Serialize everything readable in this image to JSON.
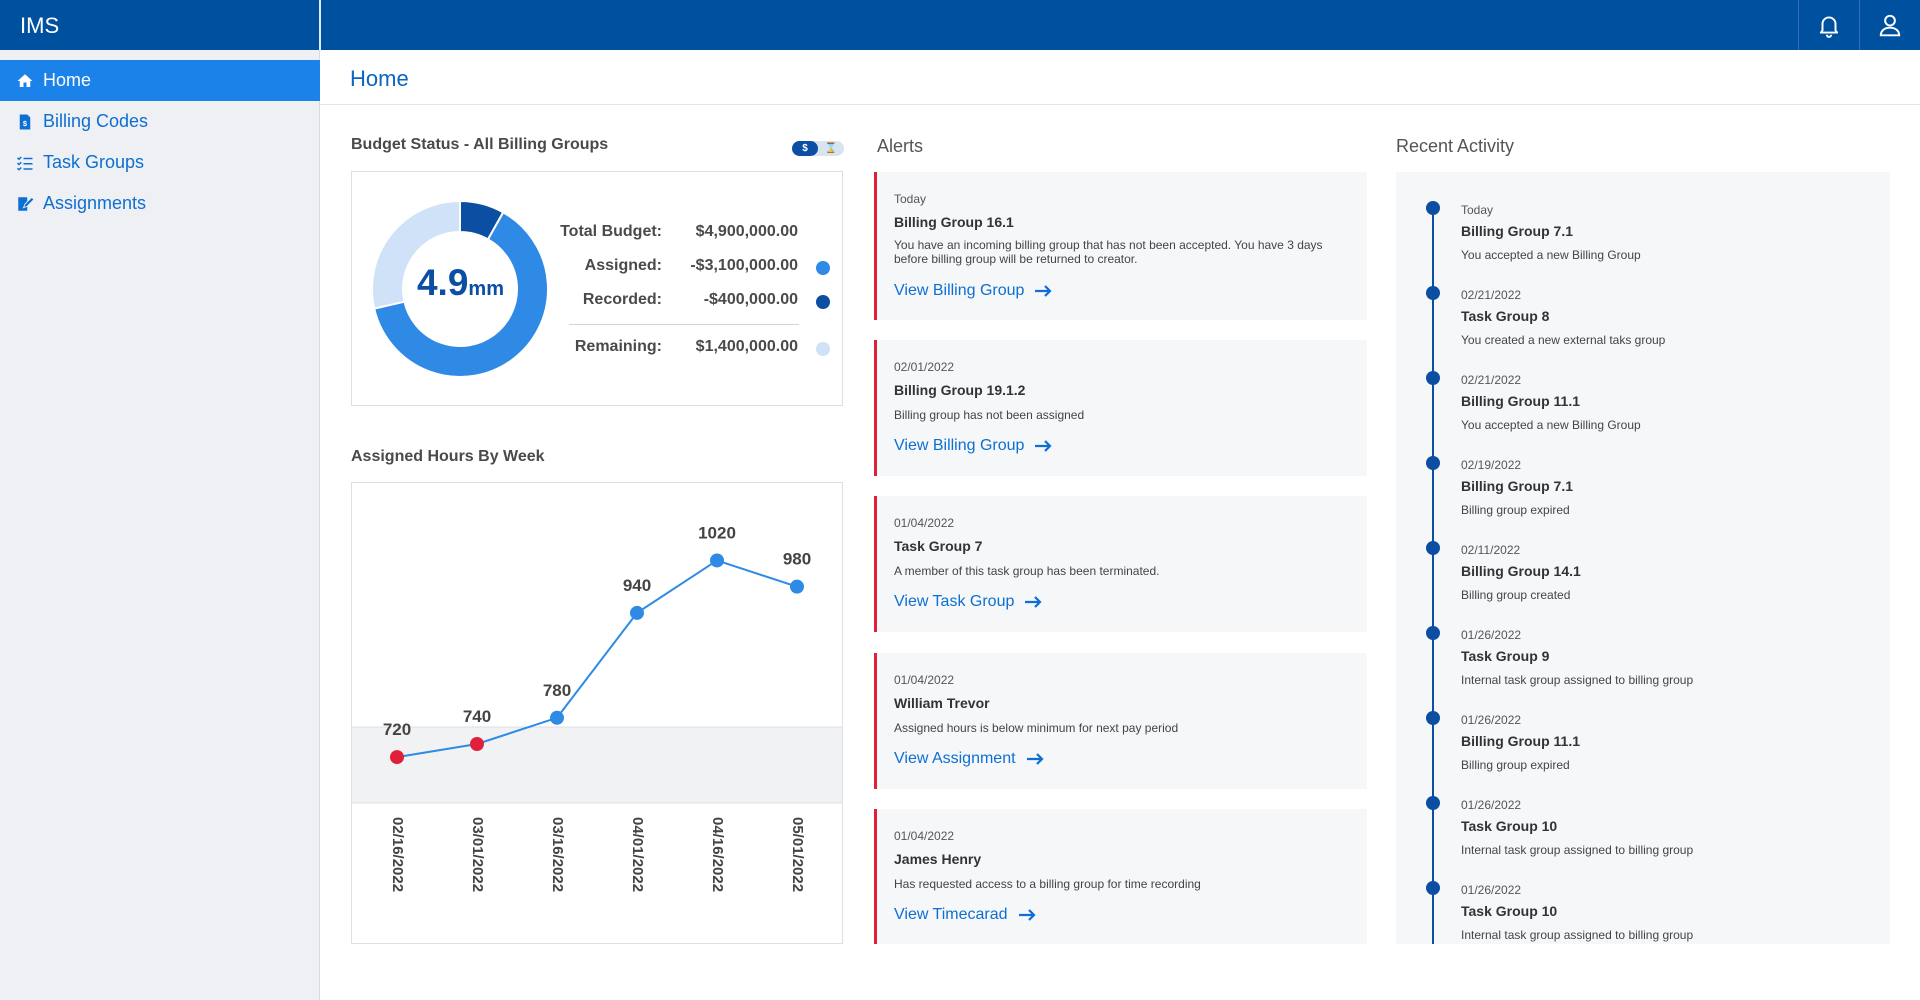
{
  "app": {
    "title": "IMS"
  },
  "topbar": {
    "notifications_icon": "bell-icon",
    "profile_icon": "user-icon"
  },
  "sidebar": {
    "items": [
      {
        "label": "Home",
        "icon": "home-icon",
        "active": true
      },
      {
        "label": "Billing Codes",
        "icon": "dollar-document-icon",
        "active": false
      },
      {
        "label": "Task Groups",
        "icon": "checklist-icon",
        "active": false
      },
      {
        "label": "Assignments",
        "icon": "edit-document-icon",
        "active": false
      }
    ]
  },
  "page": {
    "title": "Home"
  },
  "budget": {
    "title": "Budget Status - All Billing Groups",
    "toggle": {
      "on_label": "$",
      "off_label": "⌛"
    },
    "center_value": "4.9",
    "center_unit": "mm",
    "rows": [
      {
        "label": "Total Budget:",
        "value": "$4,900,000.00",
        "color": ""
      },
      {
        "label": "Assigned:",
        "value": "-$3,100,000.00",
        "color": "#2f8ae6"
      },
      {
        "label": "Recorded:",
        "value": "-$400,000.00",
        "color": "#0b4ea2"
      },
      {
        "label": "Remaining:",
        "value": "$1,400,000.00",
        "color": "#cfe2f7"
      }
    ],
    "donut": {
      "total": 4900000,
      "segments": [
        {
          "name": "Recorded",
          "value": 400000,
          "color": "#0b4ea2"
        },
        {
          "name": "Assigned",
          "value": 3100000,
          "color": "#2f8ae6"
        },
        {
          "name": "Remaining",
          "value": 1400000,
          "color": "#cfe2f7"
        }
      ]
    }
  },
  "hours_chart_title": "Assigned Hours By Week",
  "chart_data": {
    "type": "line",
    "title": "Assigned Hours By Week",
    "categories": [
      "02/16/2022",
      "03/01/2022",
      "03/16/2022",
      "04/01/2022",
      "04/16/2022",
      "05/01/2022"
    ],
    "values": [
      720,
      740,
      780,
      940,
      1020,
      980
    ],
    "below_min_color": "#e0203a",
    "point_color": "#2f8ae6",
    "minimum_threshold": 780,
    "ylim": [
      650,
      1100
    ],
    "xlabel": "",
    "ylabel": ""
  },
  "alerts": {
    "title": "Alerts",
    "items": [
      {
        "date": "Today",
        "title": "Billing Group 16.1",
        "message": "You have an incoming billing group that has not been accepted. You have 3 days before billing group will be returned to creator.",
        "link": "View Billing Group"
      },
      {
        "date": "02/01/2022",
        "title": "Billing Group 19.1.2",
        "message": "Billing group has not been assigned",
        "link": "View Billing Group"
      },
      {
        "date": "01/04/2022",
        "title": "Task Group 7",
        "message": "A member of this task group has been terminated.",
        "link": "View Task Group"
      },
      {
        "date": "01/04/2022",
        "title": "William Trevor",
        "message": "Assigned hours is below minimum for next pay period",
        "link": "View Assignment"
      },
      {
        "date": "01/04/2022",
        "title": "James Henry",
        "message": "Has requested access to a billing group for time recording",
        "link": "View Timecarad"
      }
    ]
  },
  "activity": {
    "title": "Recent Activity",
    "items": [
      {
        "date": "Today",
        "title": "Billing Group 7.1",
        "message": "You accepted a new Billing Group"
      },
      {
        "date": "02/21/2022",
        "title": "Task Group 8",
        "message": "You created a new external taks group"
      },
      {
        "date": "02/21/2022",
        "title": "Billing Group 11.1",
        "message": "You accepted a new Billing Group"
      },
      {
        "date": "02/19/2022",
        "title": "Billing Group 7.1",
        "message": "Billing group expired"
      },
      {
        "date": "02/11/2022",
        "title": "Billing Group 14.1",
        "message": "Billing group created"
      },
      {
        "date": "01/26/2022",
        "title": "Task Group 9",
        "message": "Internal task group assigned to billing group"
      },
      {
        "date": "01/26/2022",
        "title": "Billing Group 11.1",
        "message": "Billing group expired"
      },
      {
        "date": "01/26/2022",
        "title": "Task Group 10",
        "message": "Internal task group assigned to billing group"
      },
      {
        "date": "01/26/2022",
        "title": "Task Group 10",
        "message": "Internal task group assigned to billing group"
      }
    ]
  }
}
